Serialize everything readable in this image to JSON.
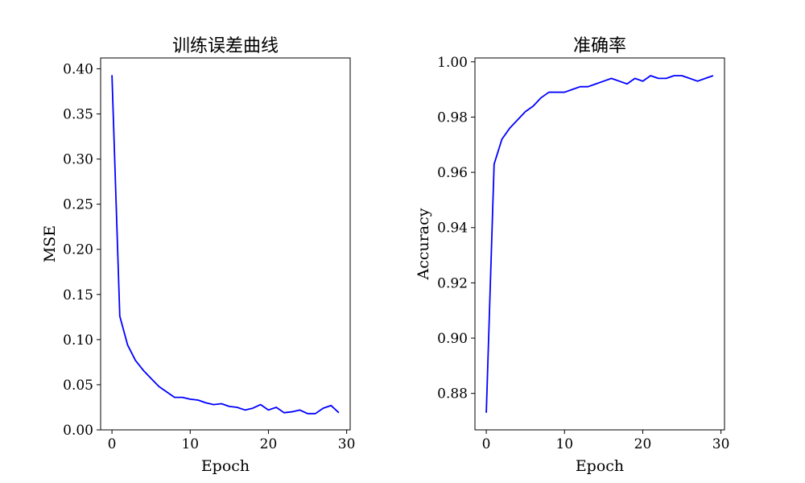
{
  "chart_data": [
    {
      "type": "line",
      "title": "训练误差曲线",
      "xlabel": "Epoch",
      "ylabel": "MSE",
      "xlim": [
        -1.45,
        30.45
      ],
      "ylim": [
        0.0,
        0.412
      ],
      "xticks": [
        0,
        10,
        20,
        30
      ],
      "yticks": [
        0.0,
        0.05,
        0.1,
        0.15,
        0.2,
        0.25,
        0.3,
        0.35,
        0.4
      ],
      "ytick_format": 2,
      "grid": false,
      "line_color": "#0000ff",
      "x": [
        0,
        1,
        2,
        3,
        4,
        5,
        6,
        7,
        8,
        9,
        10,
        11,
        12,
        13,
        14,
        15,
        16,
        17,
        18,
        19,
        20,
        21,
        22,
        23,
        24,
        25,
        26,
        27,
        28,
        29
      ],
      "y": [
        0.393,
        0.126,
        0.094,
        0.077,
        0.066,
        0.057,
        0.048,
        0.042,
        0.036,
        0.036,
        0.034,
        0.033,
        0.03,
        0.028,
        0.029,
        0.026,
        0.025,
        0.022,
        0.024,
        0.028,
        0.022,
        0.025,
        0.019,
        0.02,
        0.022,
        0.018,
        0.018,
        0.024,
        0.027,
        0.019
      ]
    },
    {
      "type": "line",
      "title": "准确率",
      "xlabel": "Epoch",
      "ylabel": "Accuracy",
      "xlim": [
        -1.45,
        30.45
      ],
      "ylim": [
        0.8668,
        1.0014
      ],
      "xticks": [
        0,
        10,
        20,
        30
      ],
      "yticks": [
        0.88,
        0.9,
        0.92,
        0.94,
        0.96,
        0.98,
        1.0
      ],
      "ytick_format": 2,
      "grid": false,
      "line_color": "#0000ff",
      "x": [
        0,
        1,
        2,
        3,
        4,
        5,
        6,
        7,
        8,
        9,
        10,
        11,
        12,
        13,
        14,
        15,
        16,
        17,
        18,
        19,
        20,
        21,
        22,
        23,
        24,
        25,
        26,
        27,
        28,
        29
      ],
      "y": [
        0.873,
        0.963,
        0.972,
        0.976,
        0.979,
        0.982,
        0.984,
        0.987,
        0.989,
        0.989,
        0.989,
        0.99,
        0.991,
        0.991,
        0.992,
        0.993,
        0.994,
        0.993,
        0.992,
        0.994,
        0.993,
        0.995,
        0.994,
        0.994,
        0.995,
        0.995,
        0.994,
        0.993,
        0.994,
        0.995
      ]
    }
  ]
}
